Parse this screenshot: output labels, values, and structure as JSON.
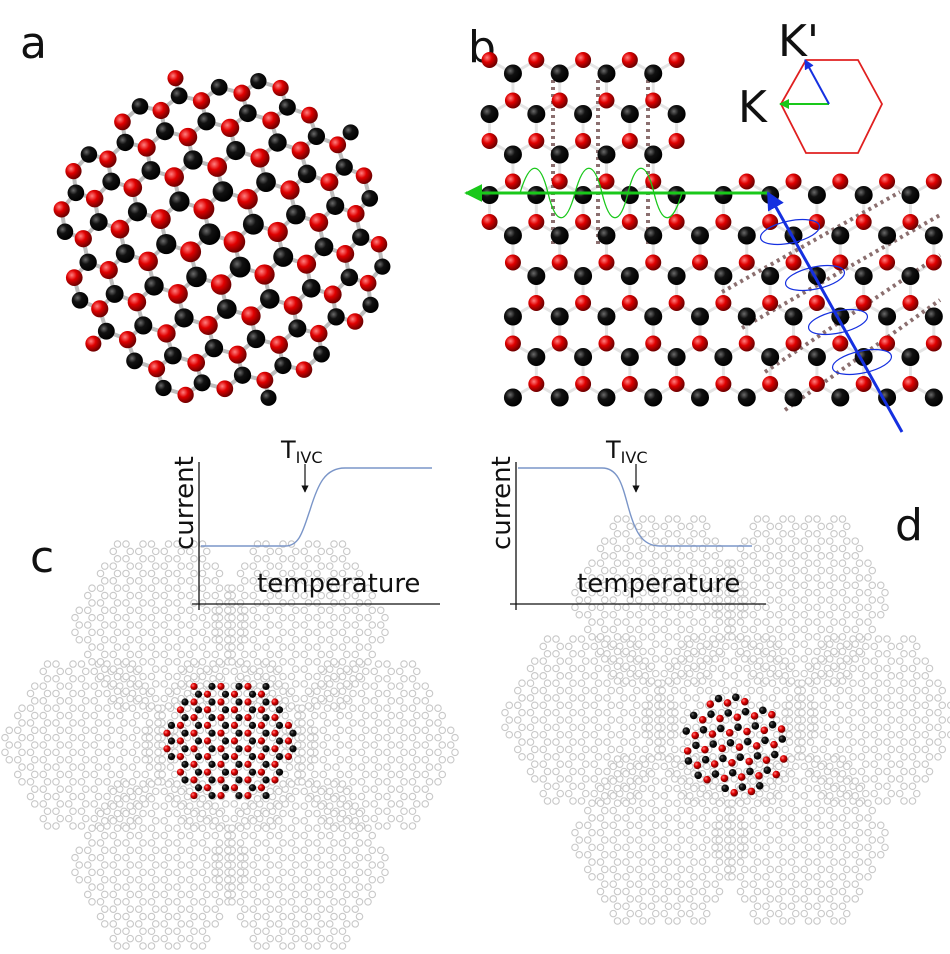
{
  "panels": {
    "a": {
      "label": "a"
    },
    "b": {
      "label": "b",
      "k_label": "K",
      "kprime_label": "K'"
    },
    "c": {
      "label": "c",
      "ylabel": "current",
      "xlabel": "temperature",
      "marker_main": "T",
      "marker_sub": "IVC",
      "trend": "low-to-high step"
    },
    "d": {
      "label": "d",
      "ylabel": "current",
      "xlabel": "temperature",
      "marker_main": "T",
      "marker_sub": "IVC",
      "trend": "high-to-low step"
    }
  },
  "colors": {
    "atom_red": "#e00000",
    "atom_black": "#0a0a0a",
    "bond": "#bdbdbd",
    "faint_lattice": "#c8c8c8",
    "curve": "#7a95c8",
    "arrow_green": "#19c81a",
    "arrow_blue": "#1530e0",
    "hexagon_red": "#e02020",
    "dashed_bond": "#8b6f6f"
  }
}
